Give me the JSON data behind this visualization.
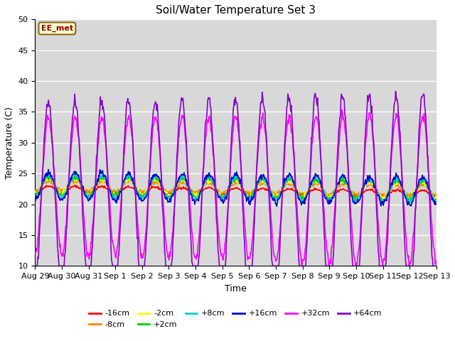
{
  "title": "Soil/Water Temperature Set 3",
  "xlabel": "Time",
  "ylabel": "Temperature (C)",
  "ylim": [
    10,
    50
  ],
  "n_days": 15,
  "plot_bg": "#d8d8d8",
  "annotation_text": "EE_met",
  "annotation_bg": "#ffffcc",
  "annotation_edge": "#8b6914",
  "annotation_text_color": "#8b0000",
  "series_order": [
    "-16cm",
    "-8cm",
    "-2cm",
    "+2cm",
    "+8cm",
    "+16cm",
    "+32cm",
    "+64cm"
  ],
  "series": {
    "-16cm": {
      "color": "#ff0000",
      "lw": 1.2
    },
    "-8cm": {
      "color": "#ff8800",
      "lw": 1.2
    },
    "-2cm": {
      "color": "#ffff00",
      "lw": 1.2
    },
    "+2cm": {
      "color": "#00cc00",
      "lw": 1.2
    },
    "+8cm": {
      "color": "#00cccc",
      "lw": 1.2
    },
    "+16cm": {
      "color": "#0000cc",
      "lw": 1.2
    },
    "+32cm": {
      "color": "#ff00ff",
      "lw": 1.2
    },
    "+64cm": {
      "color": "#8800cc",
      "lw": 1.2
    }
  },
  "tick_labels": [
    "Aug 29",
    "Aug 30",
    "Aug 31",
    "Sep 1",
    "Sep 2",
    "Sep 3",
    "Sep 4",
    "Sep 5",
    "Sep 6",
    "Sep 7",
    "Sep 8",
    "Sep 9",
    "Sep 10",
    "Sep 11",
    "Sep 12",
    "Sep 13"
  ],
  "yticks": [
    10,
    15,
    20,
    25,
    30,
    35,
    40,
    45,
    50
  ],
  "legend_row1": [
    "-16cm",
    "-8cm",
    "-2cm",
    "+2cm",
    "+8cm",
    "+16cm"
  ],
  "legend_row2": [
    "+32cm",
    "+64cm"
  ]
}
